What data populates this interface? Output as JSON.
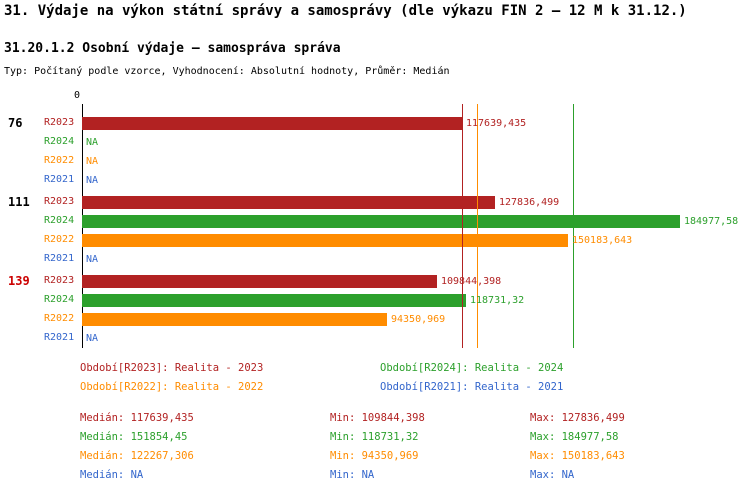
{
  "title": "31. Výdaje na výkon státní správy a samosprávy (dle výkazu FIN 2 – 12 M k 31.12.)",
  "subtitle": "31.20.1.2 Osobní výdaje – samospráva správa",
  "meta": "Typ: Počítaný podle vzorce, Vyhodnocení: Absolutní hodnoty, Průměr: Medián",
  "colors": {
    "R2023": "#b22222",
    "R2024": "#2ca02c",
    "R2022": "#ff8c00",
    "R2021": "#3366cc",
    "axis": "#000000",
    "highlight_group_label": "#cc0000"
  },
  "chart_data": {
    "type": "bar",
    "orientation": "horizontal",
    "title": "31.20.1.2 Osobní výdaje – samospráva správa",
    "xlabel": "",
    "ylabel": "",
    "xlim": [
      0,
      206000
    ],
    "grid": false,
    "axis_origin_label": "0",
    "value_format": "decimal-comma",
    "groups": [
      {
        "label": "76",
        "label_color": "#000000",
        "rows": [
          {
            "series": "R2023",
            "value": 117639.435,
            "display": "117639,435"
          },
          {
            "series": "R2024",
            "value": null,
            "display": "NA"
          },
          {
            "series": "R2022",
            "value": null,
            "display": "NA"
          },
          {
            "series": "R2021",
            "value": null,
            "display": "NA"
          }
        ]
      },
      {
        "label": "111",
        "label_color": "#000000",
        "rows": [
          {
            "series": "R2023",
            "value": 127836.499,
            "display": "127836,499"
          },
          {
            "series": "R2024",
            "value": 184977.58,
            "display": "184977,58"
          },
          {
            "series": "R2022",
            "value": 150183.643,
            "display": "150183,643"
          },
          {
            "series": "R2021",
            "value": null,
            "display": "NA"
          }
        ]
      },
      {
        "label": "139",
        "label_color": "#cc0000",
        "rows": [
          {
            "series": "R2023",
            "value": 109844.398,
            "display": "109844,398"
          },
          {
            "series": "R2024",
            "value": 118731.32,
            "display": "118731,32"
          },
          {
            "series": "R2022",
            "value": 94350.969,
            "display": "94350,969"
          },
          {
            "series": "R2021",
            "value": null,
            "display": "NA"
          }
        ]
      }
    ],
    "median_lines": [
      {
        "series": "R2023",
        "value": 117639.435
      },
      {
        "series": "R2022",
        "value": 122267.306
      },
      {
        "series": "R2024",
        "value": 151854.45
      }
    ]
  },
  "legend": [
    {
      "series": "R2023",
      "label": "Období[R2023]: Realita - 2023"
    },
    {
      "series": "R2024",
      "label": "Období[R2024]: Realita - 2024"
    },
    {
      "series": "R2022",
      "label": "Období[R2022]: Realita - 2022"
    },
    {
      "series": "R2021",
      "label": "Období[R2021]: Realita - 2021"
    }
  ],
  "stats": [
    {
      "series": "R2023",
      "median_text": "Medián: 117639,435",
      "min_text": "Min: 109844,398",
      "max_text": "Max: 127836,499"
    },
    {
      "series": "R2024",
      "median_text": "Medián: 151854,45",
      "min_text": "Min: 118731,32",
      "max_text": "Max: 184977,58"
    },
    {
      "series": "R2022",
      "median_text": "Medián: 122267,306",
      "min_text": "Min: 94350,969",
      "max_text": "Max: 150183,643"
    },
    {
      "series": "R2021",
      "median_text": "Medián: NA",
      "min_text": "Min: NA",
      "max_text": "Max: NA"
    }
  ]
}
